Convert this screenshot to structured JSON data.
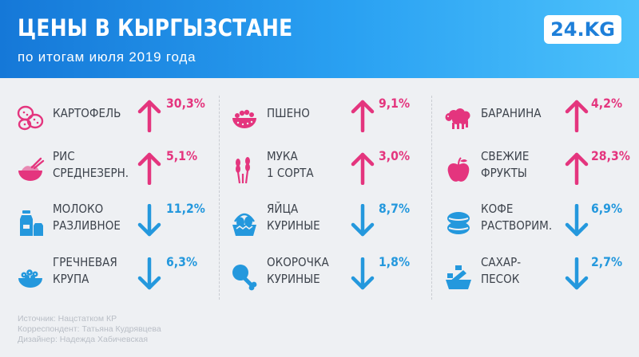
{
  "header": {
    "title": "ЦЕНЫ В КЫРГЫЗСТАНЕ",
    "subtitle": "по итогам июля 2019 года",
    "logo": "24.KG"
  },
  "colors": {
    "up": "#e4357e",
    "down": "#2498dd",
    "header_start": "#1578d8",
    "header_end": "#4cc1fb"
  },
  "chart_data": {
    "type": "table",
    "title": "ЦЕНЫ В КЫРГЫЗСТАНЕ",
    "subtitle": "по итогам июля 2019 года",
    "unit": "%",
    "items": [
      {
        "name": [
          "КАРТОФЕЛЬ"
        ],
        "change": "30,3%",
        "value": 30.3,
        "direction": "up",
        "icon": "potato-icon"
      },
      {
        "name": [
          "РИС",
          "СРЕДНЕЗЕРН."
        ],
        "change": "5,1%",
        "value": 5.1,
        "direction": "up",
        "icon": "rice-bowl-icon"
      },
      {
        "name": [
          "МОЛОКО",
          "РАЗЛИВНОЕ"
        ],
        "change": "11,2%",
        "value": 11.2,
        "direction": "down",
        "icon": "milk-icon"
      },
      {
        "name": [
          "ГРЕЧНЕВАЯ",
          "КРУПА"
        ],
        "change": "6,3%",
        "value": 6.3,
        "direction": "down",
        "icon": "buckwheat-icon"
      },
      {
        "name": [
          "ПШЕНО"
        ],
        "change": "9,1%",
        "value": 9.1,
        "direction": "up",
        "icon": "millet-icon"
      },
      {
        "name": [
          "МУКА",
          "1 СОРТА"
        ],
        "change": "3,0%",
        "value": 3.0,
        "direction": "up",
        "icon": "wheat-icon"
      },
      {
        "name": [
          "ЯЙЦА",
          "КУРИНЫЕ"
        ],
        "change": "8,7%",
        "value": 8.7,
        "direction": "down",
        "icon": "eggs-basket-icon"
      },
      {
        "name": [
          "ОКОРОЧКА",
          "КУРИНЫЕ"
        ],
        "change": "1,8%",
        "value": 1.8,
        "direction": "down",
        "icon": "chicken-leg-icon"
      },
      {
        "name": [
          "БАРАНИНА"
        ],
        "change": "4,2%",
        "value": 4.2,
        "direction": "up",
        "icon": "sheep-icon"
      },
      {
        "name": [
          "СВЕЖИЕ",
          "ФРУКТЫ"
        ],
        "change": "28,3%",
        "value": 28.3,
        "direction": "up",
        "icon": "apple-icon"
      },
      {
        "name": [
          "КОФЕ",
          "РАСТВОРИМ."
        ],
        "change": "6,9%",
        "value": 6.9,
        "direction": "down",
        "icon": "coffee-beans-icon"
      },
      {
        "name": [
          "САХАР-",
          "ПЕСОК"
        ],
        "change": "2,7%",
        "value": 2.7,
        "direction": "down",
        "icon": "sugar-scoop-icon"
      }
    ]
  },
  "credits": {
    "source": "Источник: Нацстатком КР",
    "correspondent": "Корреспондент: Татьяна Кудрявцева",
    "designer": "Дизайнер: Надежда Хабичевская"
  }
}
